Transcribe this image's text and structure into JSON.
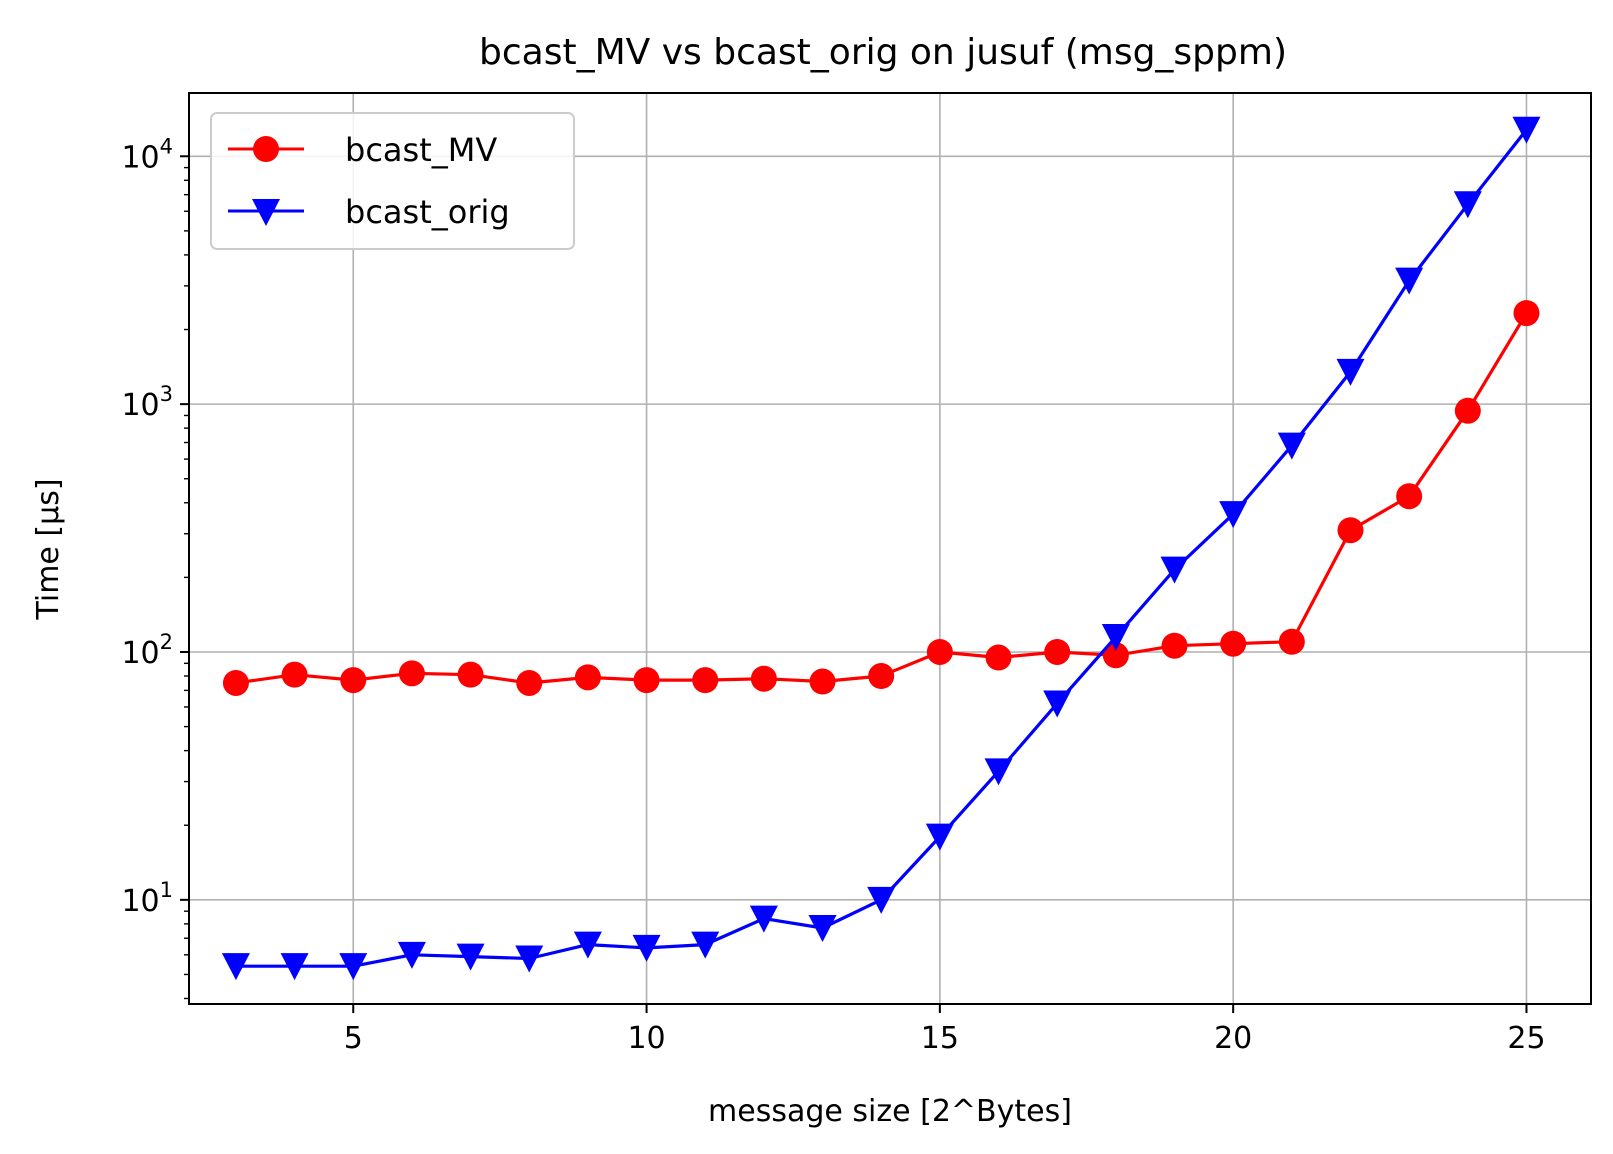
{
  "chart_data": {
    "type": "line",
    "title": "bcast_MV vs bcast_orig on jusuf (msg_sppm)",
    "xlabel": "message size [2^Bytes]",
    "ylabel": "Time [µs]",
    "yscale": "log",
    "xlim": [
      2.2,
      26.1
    ],
    "ylim": [
      3.8,
      18000
    ],
    "grid": true,
    "legend_position": "top-left",
    "x_ticks": [
      5,
      10,
      15,
      20,
      25
    ],
    "x_tick_labels": [
      "5",
      "10",
      "15",
      "20",
      "25"
    ],
    "y_ticks": [
      10,
      100,
      1000,
      10000
    ],
    "y_tick_labels": [
      {
        "base": "10",
        "exp": "1"
      },
      {
        "base": "10",
        "exp": "2"
      },
      {
        "base": "10",
        "exp": "3"
      },
      {
        "base": "10",
        "exp": "4"
      }
    ],
    "x": [
      3,
      4,
      5,
      6,
      7,
      8,
      9,
      10,
      11,
      12,
      13,
      14,
      15,
      16,
      17,
      18,
      19,
      20,
      21,
      22,
      23,
      24,
      25
    ],
    "series": [
      {
        "name": "bcast_MV",
        "color": "#ff0000",
        "marker": "circle",
        "values": [
          75,
          81,
          77,
          82,
          81,
          75,
          79,
          77,
          77,
          78,
          76,
          80,
          100,
          95,
          100,
          97,
          106,
          108,
          110,
          310,
          425,
          940,
          2330
        ]
      },
      {
        "name": "bcast_orig",
        "color": "#0000ff",
        "marker": "triangle-down",
        "values": [
          5.4,
          5.4,
          5.4,
          6.0,
          5.9,
          5.8,
          6.6,
          6.4,
          6.6,
          8.4,
          7.7,
          10.0,
          18.0,
          33.0,
          62.0,
          115.0,
          215.0,
          360.0,
          680.0,
          1350.0,
          3150.0,
          6400.0,
          12800.0
        ]
      }
    ]
  }
}
